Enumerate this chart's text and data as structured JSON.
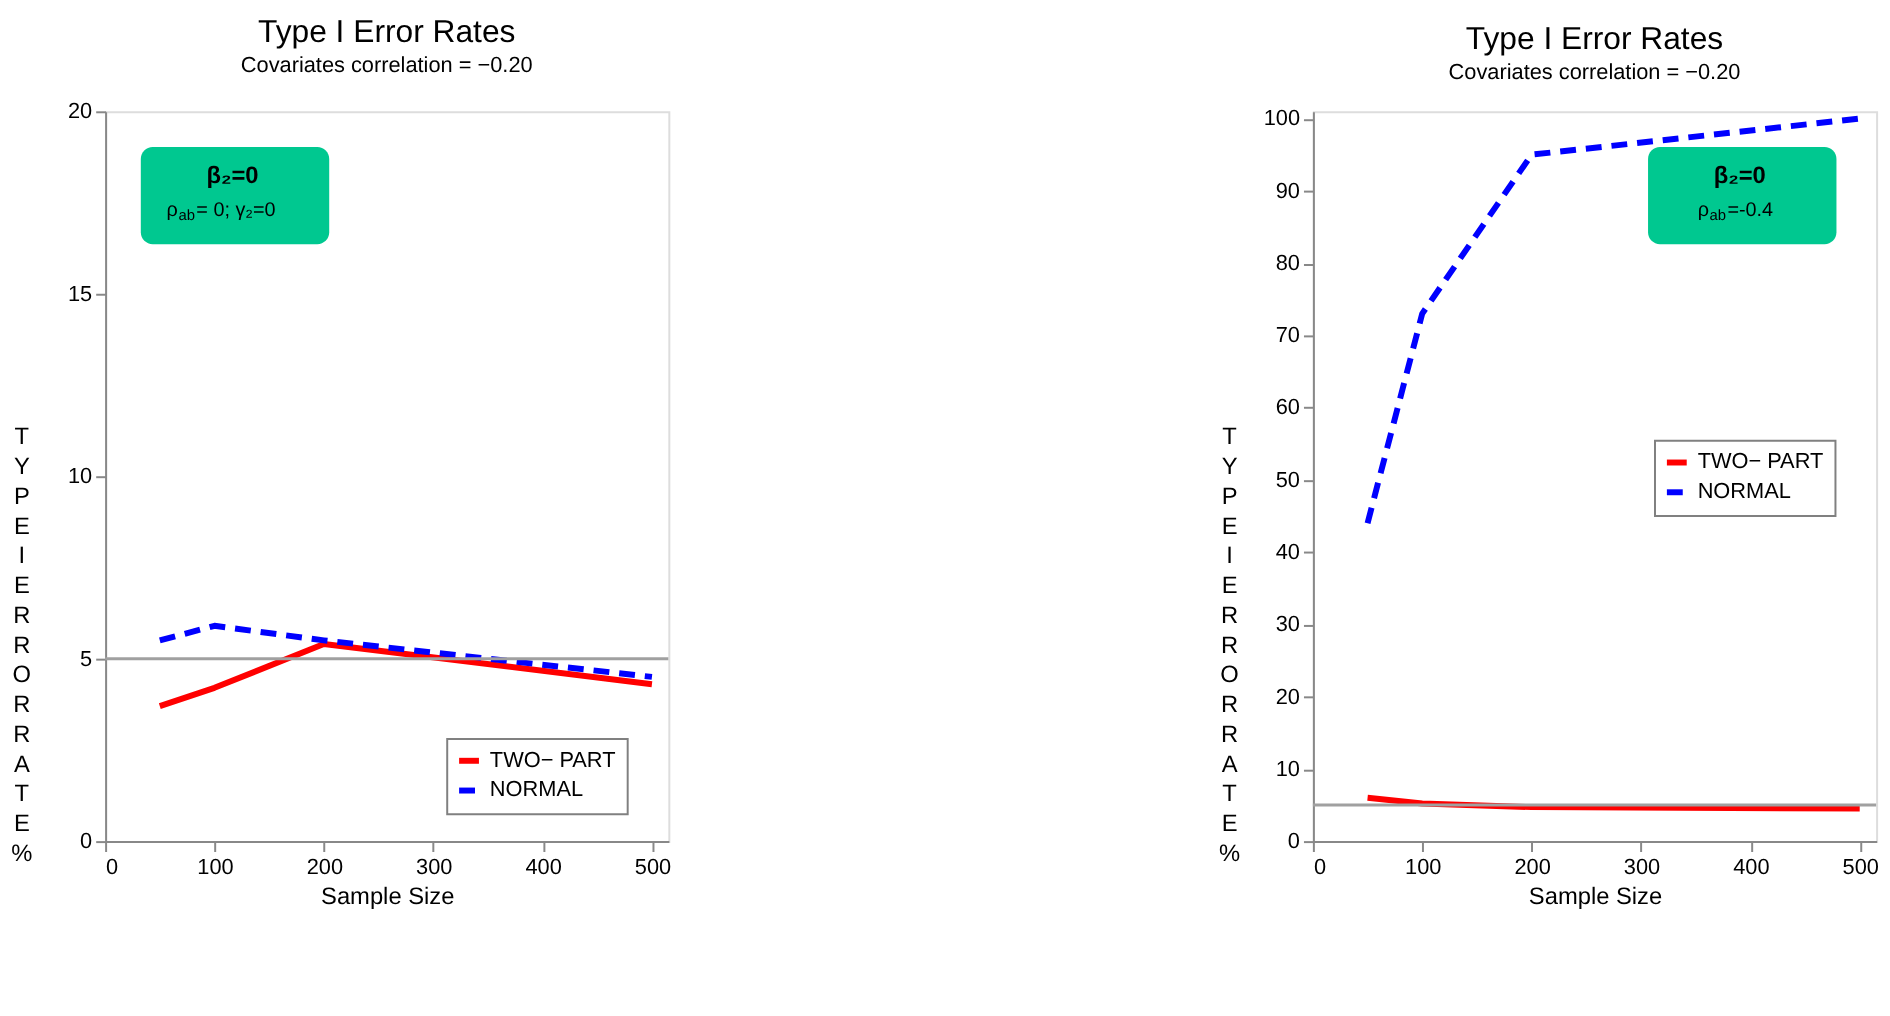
{
  "chart_data": [
    {
      "type": "line",
      "title": "Type I Error Rates",
      "subtitle": "Covariates correlation =  −0.20",
      "xlabel": "Sample Size",
      "ylabel": "TYPE I ERROR RATE %",
      "x": [
        50,
        100,
        200,
        500
      ],
      "xlim": [
        0,
        515
      ],
      "xticks": [
        0,
        100,
        200,
        300,
        400,
        500
      ],
      "ylim": [
        0,
        20
      ],
      "yticks": [
        0,
        5,
        10,
        15,
        20
      ],
      "series": [
        {
          "name": "TWO− PART",
          "color": "#ff0000",
          "line_style": "solid",
          "values": [
            3.7,
            4.2,
            5.4,
            4.3
          ]
        },
        {
          "name": "NORMAL",
          "color": "#0000ff",
          "line_style": "dashed",
          "values": [
            5.5,
            5.9,
            5.5,
            4.5
          ]
        }
      ],
      "ref_lines": [
        {
          "axis": "y",
          "value": 5,
          "color": "#a0a0a0"
        }
      ],
      "annotations": [
        "β₂=0",
        "ρ$_{ab}$= 0; γ₂=0"
      ],
      "legend": "bottom right",
      "grid": false
    },
    {
      "type": "line",
      "title": "Type I Error Rates",
      "subtitle": "Covariates correlation =  −0.20",
      "xlabel": "Sample Size",
      "ylabel": "TYPE I ERROR RATE %",
      "x": [
        50,
        100,
        200,
        500
      ],
      "xlim": [
        0,
        515
      ],
      "xticks": [
        0,
        100,
        200,
        300,
        400,
        500
      ],
      "ylim": [
        0,
        101
      ],
      "yticks": [
        0,
        10,
        20,
        30,
        40,
        50,
        60,
        70,
        80,
        90,
        100
      ],
      "series": [
        {
          "name": "TWO− PART",
          "color": "#ff0000",
          "line_style": "solid",
          "values": [
            6,
            5.2,
            4.7,
            4.5
          ]
        },
        {
          "name": "NORMAL",
          "color": "#0000ff",
          "line_style": "dashed",
          "values": [
            44,
            73,
            95,
            100
          ]
        }
      ],
      "ref_lines": [
        {
          "axis": "y",
          "value": 5,
          "color": "#a0a0a0"
        }
      ],
      "annotations": [
        "β₂=0",
        "ρ$_{ab}$=-0.4"
      ],
      "legend": "right",
      "grid": false
    }
  ]
}
